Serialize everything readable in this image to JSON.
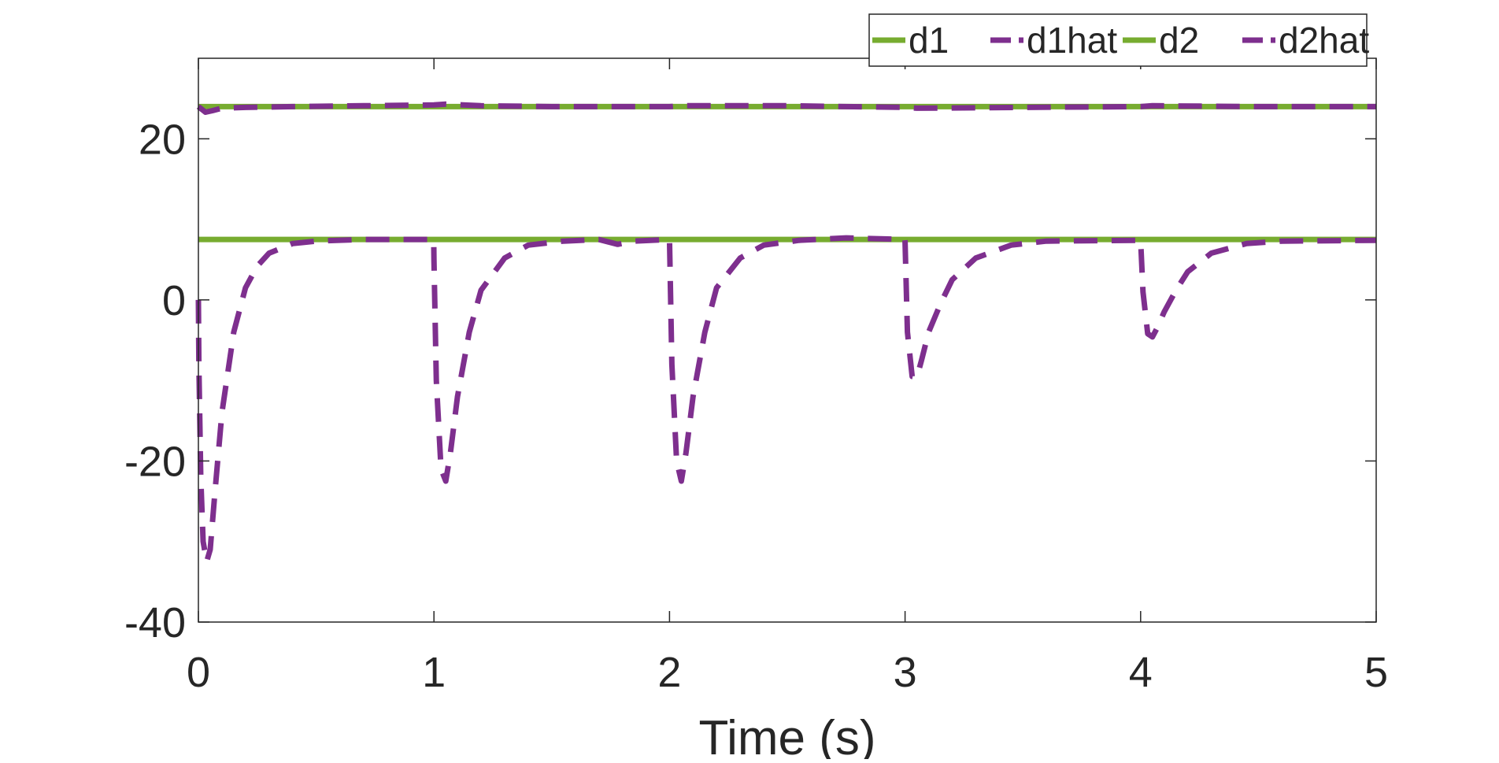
{
  "chart_data": {
    "type": "line",
    "title": "",
    "xlabel": "Time (s)",
    "ylabel": "",
    "xlim": [
      0,
      5
    ],
    "ylim": [
      -40,
      30
    ],
    "xticks": [
      0,
      1,
      2,
      3,
      4,
      5
    ],
    "yticks": [
      -40,
      -20,
      0,
      20
    ],
    "grid": false,
    "box": true,
    "legend": {
      "placement": "top-right",
      "orientation": "horizontal"
    },
    "colors": {
      "true_value": "#77ac30",
      "estimate": "#7e2f8e",
      "axis": "#262626"
    },
    "series": [
      {
        "name": "d1",
        "style": "solid",
        "color": "#77ac30",
        "x": [
          0,
          5
        ],
        "y": [
          24,
          24
        ]
      },
      {
        "name": "d1hat",
        "style": "dashed",
        "color": "#7e2f8e",
        "x": [
          0,
          0.03,
          0.06,
          0.1,
          0.2,
          0.4,
          0.7,
          1.0,
          1.05,
          1.2,
          1.5,
          2.0,
          2.05,
          2.5,
          3.0,
          3.05,
          3.5,
          4.0,
          4.05,
          4.5,
          5.0
        ],
        "y": [
          24,
          23.3,
          23.5,
          23.8,
          23.9,
          24.0,
          24.1,
          24.2,
          24.3,
          24.1,
          24.0,
          24.0,
          24.1,
          24.1,
          23.9,
          23.8,
          23.9,
          24.0,
          24.1,
          24.0,
          24.0
        ]
      },
      {
        "name": "d2",
        "style": "solid",
        "color": "#77ac30",
        "x": [
          0,
          5
        ],
        "y": [
          7.5,
          7.5
        ]
      },
      {
        "name": "d2hat",
        "style": "dashed",
        "color": "#7e2f8e",
        "x": [
          0,
          0.002,
          0.01,
          0.02,
          0.035,
          0.05,
          0.07,
          0.1,
          0.15,
          0.2,
          0.25,
          0.3,
          0.4,
          0.5,
          0.7,
          0.999,
          1.0,
          1.01,
          1.03,
          1.05,
          1.07,
          1.1,
          1.15,
          1.2,
          1.3,
          1.4,
          1.55,
          1.7,
          1.78,
          1.85,
          1.999,
          2.0,
          2.01,
          2.03,
          2.05,
          2.07,
          2.1,
          2.15,
          2.2,
          2.3,
          2.4,
          2.55,
          2.75,
          2.999,
          3.0,
          3.01,
          3.03,
          3.05,
          3.07,
          3.1,
          3.15,
          3.2,
          3.3,
          3.45,
          3.6,
          3.999,
          4.0,
          4.01,
          4.03,
          4.05,
          4.07,
          4.1,
          4.15,
          4.2,
          4.3,
          4.45,
          4.6,
          5.0
        ],
        "y": [
          0,
          -8,
          -22,
          -30,
          -32.5,
          -31,
          -24,
          -14,
          -4,
          1.5,
          4.2,
          5.8,
          7.0,
          7.3,
          7.5,
          7.5,
          5,
          -10,
          -21,
          -22.5,
          -19,
          -12,
          -4,
          1.2,
          5.2,
          6.8,
          7.3,
          7.5,
          6.9,
          7.3,
          7.5,
          7.5,
          -8,
          -20,
          -22.5,
          -19,
          -12,
          -4,
          1.5,
          5.2,
          6.8,
          7.4,
          7.7,
          7.5,
          7.2,
          -4,
          -9.5,
          -9.6,
          -7.5,
          -4,
          -0.5,
          2.5,
          5.2,
          6.8,
          7.3,
          7.4,
          7.4,
          1,
          -4.2,
          -4.6,
          -3.5,
          -1.5,
          1.2,
          3.5,
          5.8,
          7.0,
          7.3,
          7.4
        ]
      }
    ]
  }
}
